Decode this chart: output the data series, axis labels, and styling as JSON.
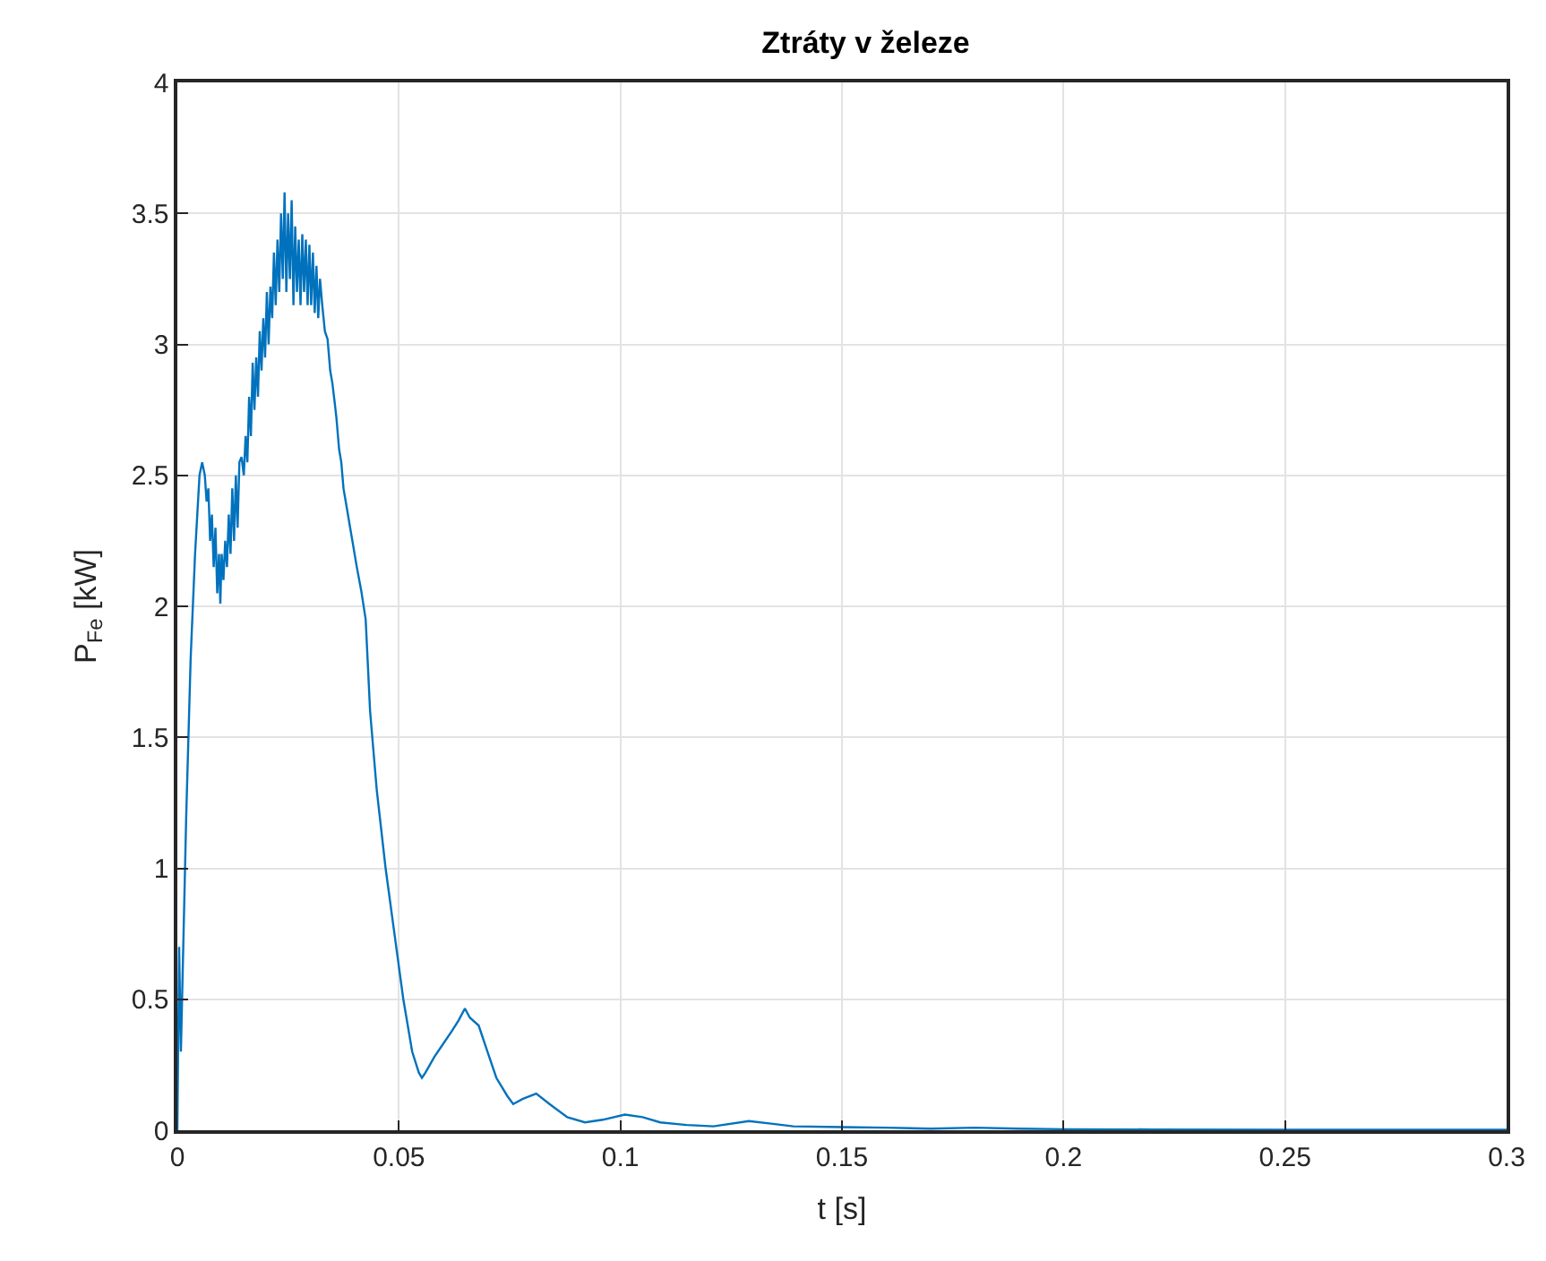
{
  "chart_data": {
    "type": "line",
    "title": "Ztráty v železe",
    "xlabel": "t [s]",
    "ylabel": "P$_{Fe}$ [kW]",
    "xlim": [
      0,
      0.3
    ],
    "xticks": [
      0,
      0.05,
      0.1,
      0.15,
      0.2,
      0.25,
      0.3
    ],
    "ylim": [
      0,
      4
    ],
    "yticks": [
      0,
      0.5,
      1,
      1.5,
      2,
      2.5,
      3,
      3.5,
      4
    ],
    "grid": true,
    "marker": "none",
    "line_style": "solid",
    "series": [
      {
        "color": "#0072bd",
        "x": [
          0,
          0.0004,
          0.0008,
          0.0012,
          0.002,
          0.003,
          0.004,
          0.005,
          0.0056,
          0.0062,
          0.0066,
          0.007,
          0.0074,
          0.0078,
          0.0082,
          0.0086,
          0.009,
          0.0094,
          0.0097,
          0.01,
          0.0104,
          0.0108,
          0.0112,
          0.0116,
          0.012,
          0.0124,
          0.0128,
          0.0132,
          0.0136,
          0.014,
          0.0145,
          0.015,
          0.0154,
          0.0158,
          0.0162,
          0.0166,
          0.017,
          0.0174,
          0.0178,
          0.0182,
          0.0186,
          0.019,
          0.0194,
          0.0198,
          0.0202,
          0.0206,
          0.021,
          0.0214,
          0.0218,
          0.0222,
          0.0226,
          0.023,
          0.0234,
          0.0238,
          0.0242,
          0.0246,
          0.025,
          0.0254,
          0.0258,
          0.0262,
          0.0266,
          0.027,
          0.0274,
          0.0278,
          0.0282,
          0.0286,
          0.029,
          0.0294,
          0.0298,
          0.0302,
          0.0306,
          0.031,
          0.0314,
          0.0318,
          0.0322,
          0.0327,
          0.0333,
          0.0339,
          0.0345,
          0.035,
          0.0355,
          0.0359,
          0.0365,
          0.037,
          0.0375,
          0.038,
          0.0387,
          0.0395,
          0.0405,
          0.0415,
          0.0425,
          0.0435,
          0.045,
          0.047,
          0.049,
          0.051,
          0.053,
          0.0545,
          0.0552,
          0.056,
          0.058,
          0.06,
          0.062,
          0.0635,
          0.0649,
          0.066,
          0.068,
          0.07,
          0.072,
          0.0745,
          0.0758,
          0.078,
          0.081,
          0.084,
          0.088,
          0.092,
          0.096,
          0.101,
          0.105,
          0.109,
          0.115,
          0.121,
          0.129,
          0.134,
          0.139,
          0.15,
          0.16,
          0.17,
          0.18,
          0.19,
          0.2,
          0.22,
          0.25,
          0.28,
          0.3
        ],
        "values": [
          0.0,
          0.7,
          0.3,
          0.6,
          1.2,
          1.8,
          2.2,
          2.5,
          2.55,
          2.5,
          2.4,
          2.45,
          2.25,
          2.35,
          2.15,
          2.3,
          2.05,
          2.2,
          2.01,
          2.2,
          2.1,
          2.25,
          2.15,
          2.35,
          2.2,
          2.45,
          2.25,
          2.5,
          2.3,
          2.55,
          2.57,
          2.5,
          2.65,
          2.55,
          2.8,
          2.65,
          2.93,
          2.75,
          2.95,
          2.8,
          3.05,
          2.9,
          3.1,
          2.95,
          3.2,
          3.0,
          3.22,
          3.1,
          3.35,
          3.15,
          3.4,
          3.2,
          3.5,
          3.25,
          3.58,
          3.2,
          3.5,
          3.25,
          3.55,
          3.15,
          3.45,
          3.2,
          3.4,
          3.15,
          3.42,
          3.2,
          3.4,
          3.15,
          3.38,
          3.15,
          3.35,
          3.12,
          3.3,
          3.1,
          3.25,
          3.15,
          3.05,
          3.02,
          2.9,
          2.85,
          2.78,
          2.72,
          2.6,
          2.55,
          2.45,
          2.4,
          2.33,
          2.25,
          2.15,
          2.06,
          1.95,
          1.6,
          1.3,
          1.0,
          0.75,
          0.5,
          0.3,
          0.22,
          0.2,
          0.22,
          0.28,
          0.33,
          0.38,
          0.42,
          0.465,
          0.43,
          0.4,
          0.3,
          0.2,
          0.13,
          0.1,
          0.12,
          0.14,
          0.1,
          0.05,
          0.03,
          0.04,
          0.06,
          0.05,
          0.03,
          0.02,
          0.015,
          0.035,
          0.025,
          0.015,
          0.012,
          0.01,
          0.006,
          0.01,
          0.006,
          0.004,
          0.003,
          0.002,
          0.002,
          0.002
        ]
      }
    ]
  }
}
